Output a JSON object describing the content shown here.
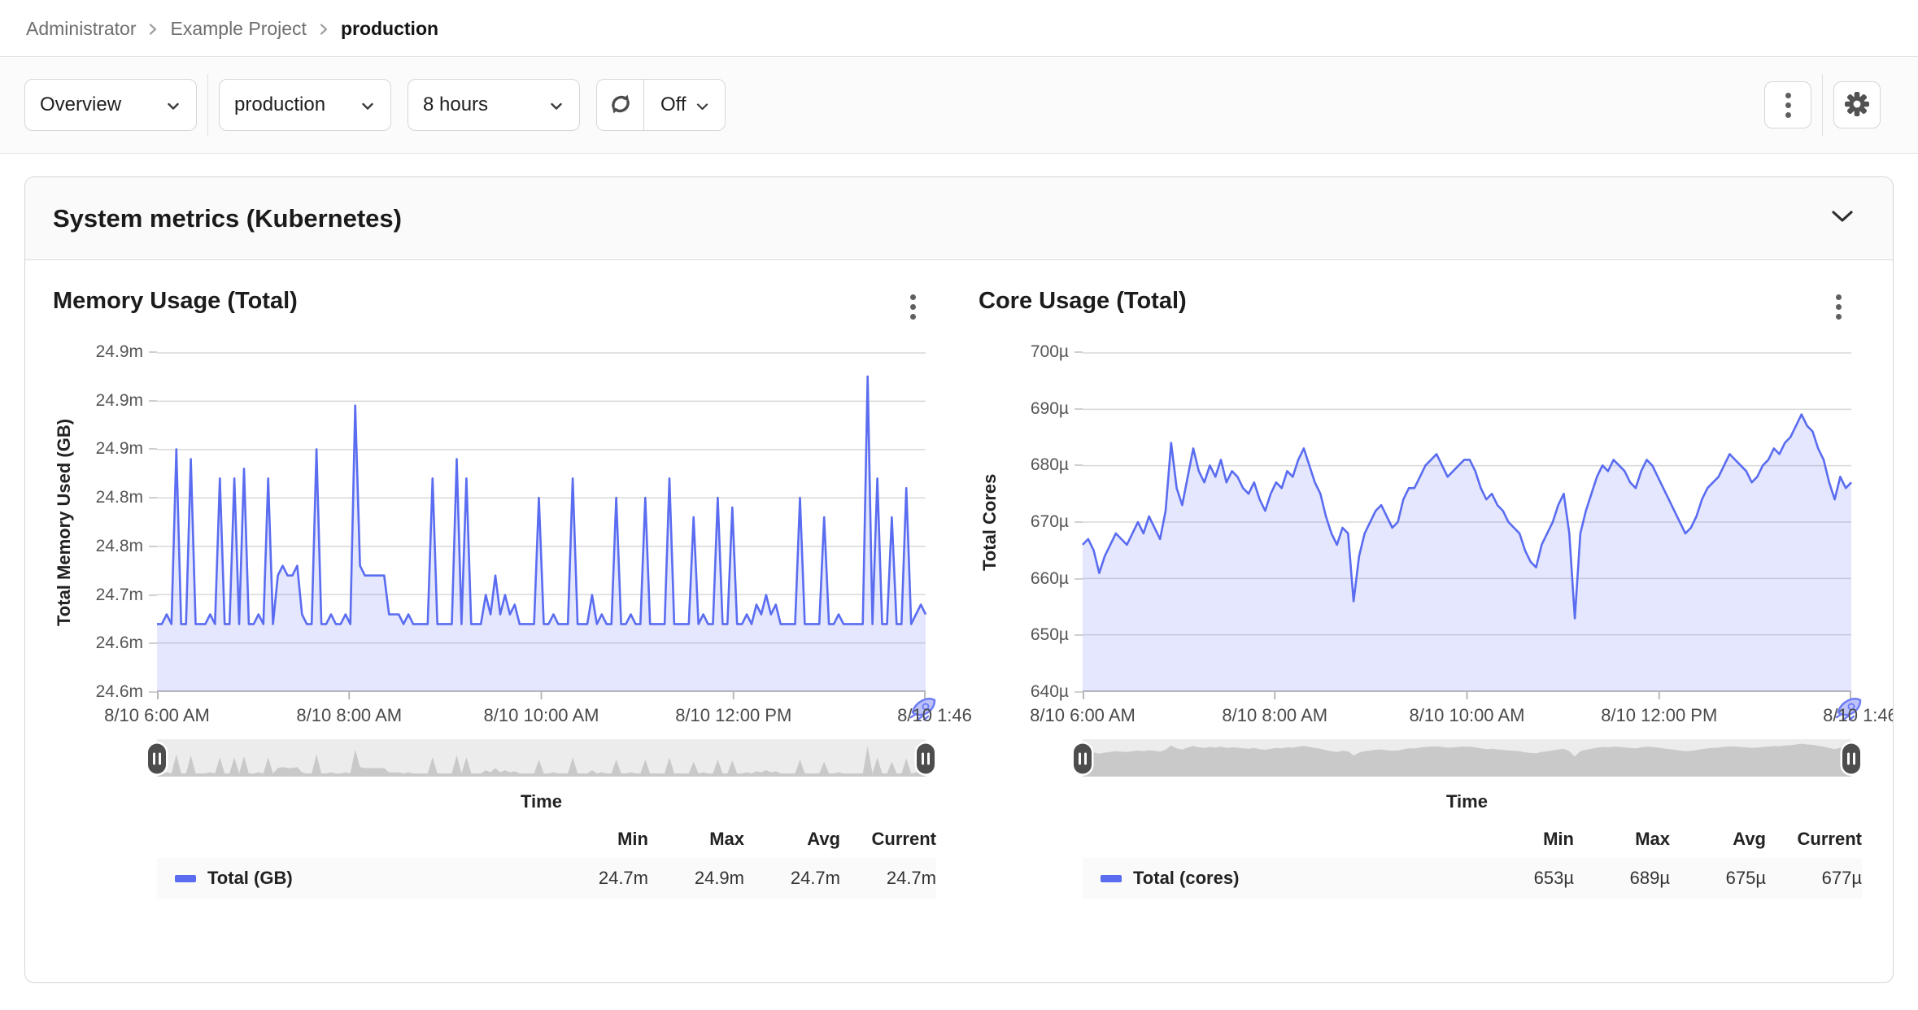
{
  "breadcrumb": {
    "items": [
      "Administrator",
      "Example Project",
      "production"
    ]
  },
  "toolbar": {
    "view_select": "Overview",
    "namespace_select": "production",
    "time_range_select": "8 hours",
    "auto_refresh_label": "Off",
    "icons": {
      "refresh": "circular-arrows",
      "more": "vertical-kebab-dots",
      "settings": "gear",
      "dropdown": "chevron-down"
    }
  },
  "panel": {
    "title": "System metrics (Kubernetes)",
    "collapse_icon": "chevron-down"
  },
  "colors": {
    "accent": "#5a6cf0",
    "area_fill": "rgba(90,108,240,0.16)",
    "grid": "#d9d9d9",
    "axis": "#b9b9b9",
    "brush_bg": "#ececec",
    "brush_fill": "#c9c9c9"
  },
  "chart_data": [
    {
      "type": "area",
      "title": "Memory Usage (Total)",
      "ylabel": "Total Memory Used (GB)",
      "xlabel": "Time",
      "yticks": [
        "24.9m",
        "24.9m",
        "24.9m",
        "24.8m",
        "24.8m",
        "24.7m",
        "24.6m",
        "24.6m"
      ],
      "xticks": [
        "8/10 6:00 AM",
        "8/10 8:00 AM",
        "8/10 10:00 AM",
        "8/10 12:00 PM",
        "8/10 1:46"
      ],
      "ylim": [
        24.58,
        24.93
      ],
      "brush_ylim": [
        24.62,
        24.97
      ],
      "legend": {
        "headers": [
          "Min",
          "Max",
          "Avg",
          "Current"
        ],
        "rows": [
          {
            "name": "Total (GB)",
            "values": [
              "24.7m",
              "24.9m",
              "24.7m",
              "24.7m"
            ]
          }
        ]
      },
      "series": [
        {
          "name": "Total (GB)",
          "values": [
            24.65,
            24.65,
            24.66,
            24.65,
            24.83,
            24.65,
            24.65,
            24.82,
            24.65,
            24.65,
            24.65,
            24.66,
            24.65,
            24.8,
            24.65,
            24.65,
            24.8,
            24.65,
            24.81,
            24.65,
            24.65,
            24.66,
            24.65,
            24.8,
            24.65,
            24.7,
            24.71,
            24.7,
            24.7,
            24.71,
            24.66,
            24.65,
            24.65,
            24.83,
            24.65,
            24.65,
            24.66,
            24.65,
            24.65,
            24.66,
            24.65,
            24.875,
            24.71,
            24.7,
            24.7,
            24.7,
            24.7,
            24.7,
            24.66,
            24.66,
            24.66,
            24.65,
            24.66,
            24.65,
            24.65,
            24.65,
            24.65,
            24.8,
            24.65,
            24.65,
            24.65,
            24.65,
            24.82,
            24.65,
            24.8,
            24.65,
            24.65,
            24.65,
            24.68,
            24.66,
            24.7,
            24.66,
            24.68,
            24.66,
            24.67,
            24.65,
            24.65,
            24.65,
            24.65,
            24.78,
            24.65,
            24.65,
            24.66,
            24.65,
            24.65,
            24.65,
            24.8,
            24.65,
            24.65,
            24.65,
            24.68,
            24.65,
            24.66,
            24.65,
            24.65,
            24.78,
            24.65,
            24.65,
            24.66,
            24.65,
            24.65,
            24.78,
            24.65,
            24.65,
            24.65,
            24.65,
            24.8,
            24.65,
            24.65,
            24.65,
            24.65,
            24.76,
            24.65,
            24.66,
            24.65,
            24.65,
            24.78,
            24.65,
            24.65,
            24.77,
            24.65,
            24.65,
            24.66,
            24.65,
            24.67,
            24.66,
            24.68,
            24.66,
            24.67,
            24.65,
            24.65,
            24.65,
            24.65,
            24.78,
            24.65,
            24.65,
            24.65,
            24.65,
            24.76,
            24.65,
            24.65,
            24.66,
            24.65,
            24.65,
            24.65,
            24.65,
            24.65,
            24.905,
            24.65,
            24.8,
            24.65,
            24.65,
            24.76,
            24.65,
            24.65,
            24.79,
            24.65,
            24.66,
            24.67,
            24.66
          ]
        }
      ]
    },
    {
      "type": "area",
      "title": "Core Usage (Total)",
      "ylabel": "Total Cores",
      "xlabel": "Time",
      "yticks": [
        "700µ",
        "690µ",
        "680µ",
        "670µ",
        "660µ",
        "650µ",
        "640µ"
      ],
      "xticks": [
        "8/10 6:00 AM",
        "8/10 8:00 AM",
        "8/10 10:00 AM",
        "8/10 12:00 PM",
        "8/10 1:46"
      ],
      "ylim": [
        640,
        700
      ],
      "brush_ylim": [
        596,
        702
      ],
      "legend": {
        "headers": [
          "Min",
          "Max",
          "Avg",
          "Current"
        ],
        "rows": [
          {
            "name": "Total (cores)",
            "values": [
              "653µ",
              "689µ",
              "675µ",
              "677µ"
            ]
          }
        ]
      },
      "series": [
        {
          "name": "Total (cores)",
          "values": [
            666,
            667,
            665,
            661,
            664,
            666,
            668,
            667,
            666,
            668,
            670,
            668,
            671,
            669,
            667,
            672,
            684,
            676,
            673,
            678,
            683,
            679,
            677,
            680,
            678,
            681,
            677,
            679,
            678,
            676,
            675,
            677,
            674,
            672,
            675,
            677,
            676,
            679,
            678,
            681,
            683,
            680,
            677,
            675,
            671,
            668,
            666,
            669,
            668,
            656,
            664,
            668,
            670,
            672,
            673,
            671,
            669,
            670,
            674,
            676,
            676,
            678,
            680,
            681,
            682,
            680,
            678,
            679,
            680,
            681,
            681,
            679,
            676,
            674,
            675,
            673,
            672,
            670,
            669,
            668,
            665,
            663,
            662,
            666,
            668,
            670,
            673,
            675,
            668,
            653,
            668,
            672,
            675,
            678,
            680,
            679,
            681,
            680,
            679,
            677,
            676,
            679,
            681,
            680,
            678,
            676,
            674,
            672,
            670,
            668,
            669,
            671,
            674,
            676,
            677,
            678,
            680,
            682,
            681,
            680,
            679,
            677,
            678,
            680,
            681,
            683,
            682,
            684,
            685,
            687,
            689,
            687,
            686,
            683,
            681,
            677,
            674,
            678,
            676,
            677
          ]
        }
      ]
    }
  ]
}
